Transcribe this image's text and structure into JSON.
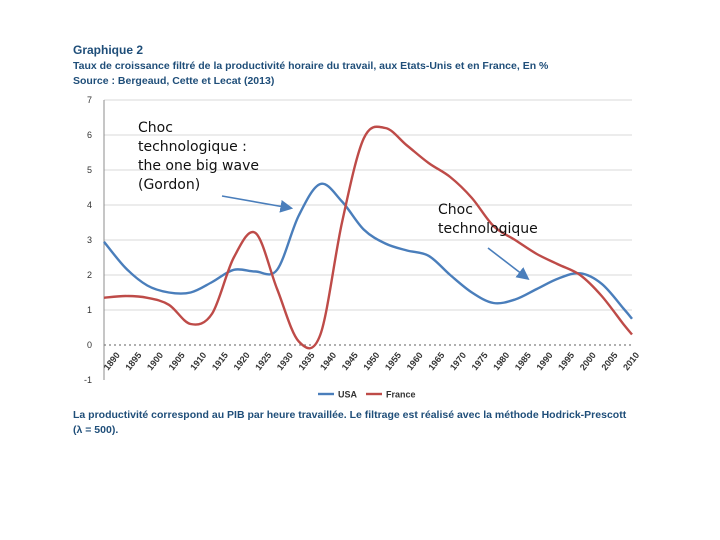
{
  "header": {
    "title": "Graphique 2",
    "subtitle": "Taux de croissance filtré de la productivité horaire du travail, aux Etats-Unis et en France, En %",
    "source": "Source : Bergeaud, Cette et Lecat (2013)"
  },
  "footnote": {
    "line1": "La productivité correspond au PIB par heure travaillée. Le filtrage est réalisé avec la méthode Hodrick-Prescott",
    "line2": "(λ = 500)."
  },
  "annotations": {
    "left": [
      "Choc",
      "technologique :",
      "the one big wave",
      "(Gordon)"
    ],
    "right": [
      "Choc",
      "technologique"
    ]
  },
  "chart_data": {
    "type": "line",
    "title": "Graphique 2",
    "xlabel": "",
    "ylabel": "",
    "x": [
      1890,
      1895,
      1900,
      1905,
      1910,
      1915,
      1920,
      1925,
      1930,
      1935,
      1940,
      1945,
      1950,
      1955,
      1960,
      1965,
      1970,
      1975,
      1980,
      1985,
      1990,
      1995,
      2000,
      2005,
      2010,
      2012
    ],
    "categories": [
      "1890",
      "1895",
      "1900",
      "1905",
      "1910",
      "1915",
      "1920",
      "1925",
      "1930",
      "1935",
      "1940",
      "1945",
      "1950",
      "1955",
      "1960",
      "1965",
      "1970",
      "1975",
      "1980",
      "1985",
      "1990",
      "1995",
      "2000",
      "2005",
      "2010"
    ],
    "yticks": [
      -1,
      0,
      1,
      2,
      3,
      4,
      5,
      6,
      7
    ],
    "ylim": [
      -1,
      7
    ],
    "xlim": [
      1890,
      2012
    ],
    "grid": true,
    "legend": "bottom",
    "series": [
      {
        "name": "USA",
        "color": "#4a7ebb",
        "values": [
          2.95,
          2.2,
          1.7,
          1.5,
          1.5,
          1.8,
          2.15,
          2.1,
          2.15,
          3.7,
          4.6,
          4.1,
          3.3,
          2.9,
          2.7,
          2.55,
          2.0,
          1.5,
          1.2,
          1.3,
          1.6,
          1.9,
          2.05,
          1.75,
          1.05,
          0.75
        ]
      },
      {
        "name": "France",
        "color": "#be4b48",
        "values": [
          1.35,
          1.4,
          1.35,
          1.15,
          0.6,
          0.9,
          2.5,
          3.2,
          1.6,
          0.1,
          0.3,
          3.5,
          5.9,
          6.2,
          5.7,
          5.2,
          4.8,
          4.2,
          3.4,
          3.0,
          2.6,
          2.3,
          2.0,
          1.4,
          0.6,
          0.3
        ]
      }
    ]
  }
}
